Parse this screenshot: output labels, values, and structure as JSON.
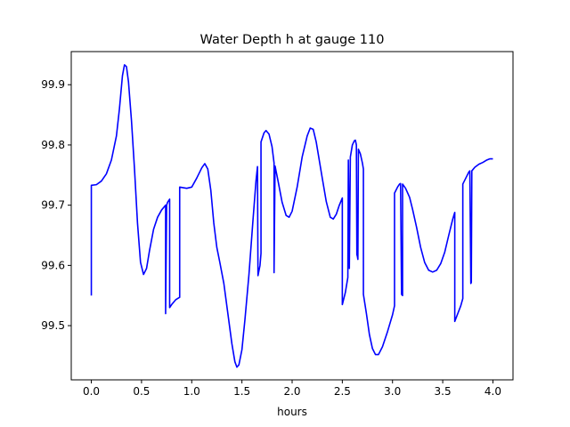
{
  "chart_data": {
    "type": "line",
    "title": "Water Depth h at gauge 110",
    "xlabel": "hours",
    "ylabel": "",
    "xlim": [
      -0.2,
      4.2
    ],
    "ylim": [
      99.41,
      99.955
    ],
    "xticks": [
      {
        "value": 0.0,
        "label": "0.0"
      },
      {
        "value": 0.5,
        "label": "0.5"
      },
      {
        "value": 1.0,
        "label": "1.0"
      },
      {
        "value": 1.5,
        "label": "1.5"
      },
      {
        "value": 2.0,
        "label": "2.0"
      },
      {
        "value": 2.5,
        "label": "2.5"
      },
      {
        "value": 3.0,
        "label": "3.0"
      },
      {
        "value": 3.5,
        "label": "3.5"
      },
      {
        "value": 4.0,
        "label": "4.0"
      }
    ],
    "yticks": [
      {
        "value": 99.5,
        "label": "99.5"
      },
      {
        "value": 99.6,
        "label": "99.6"
      },
      {
        "value": 99.7,
        "label": "99.7"
      },
      {
        "value": 99.8,
        "label": "99.8"
      },
      {
        "value": 99.9,
        "label": "99.9"
      }
    ],
    "grid": false,
    "series": [
      {
        "color": "#0000ff",
        "points": [
          [
            0.0,
            99.55
          ],
          [
            0.0,
            99.733
          ],
          [
            0.05,
            99.734
          ],
          [
            0.1,
            99.74
          ],
          [
            0.15,
            99.752
          ],
          [
            0.2,
            99.775
          ],
          [
            0.25,
            99.815
          ],
          [
            0.28,
            99.86
          ],
          [
            0.31,
            99.915
          ],
          [
            0.33,
            99.933
          ],
          [
            0.35,
            99.93
          ],
          [
            0.37,
            99.905
          ],
          [
            0.4,
            99.84
          ],
          [
            0.43,
            99.76
          ],
          [
            0.46,
            99.67
          ],
          [
            0.49,
            99.605
          ],
          [
            0.52,
            99.585
          ],
          [
            0.55,
            99.595
          ],
          [
            0.58,
            99.625
          ],
          [
            0.62,
            99.66
          ],
          [
            0.66,
            99.68
          ],
          [
            0.7,
            99.692
          ],
          [
            0.74,
            99.7
          ],
          [
            0.74,
            99.52
          ],
          [
            0.75,
            99.7
          ],
          [
            0.76,
            99.705
          ],
          [
            0.78,
            99.71
          ],
          [
            0.78,
            99.53
          ],
          [
            0.8,
            99.535
          ],
          [
            0.84,
            99.543
          ],
          [
            0.88,
            99.547
          ],
          [
            0.88,
            99.73
          ],
          [
            0.95,
            99.728
          ],
          [
            1.0,
            99.73
          ],
          [
            1.05,
            99.745
          ],
          [
            1.1,
            99.762
          ],
          [
            1.13,
            99.769
          ],
          [
            1.16,
            99.76
          ],
          [
            1.19,
            99.725
          ],
          [
            1.22,
            99.67
          ],
          [
            1.25,
            99.63
          ],
          [
            1.28,
            99.605
          ],
          [
            1.32,
            99.57
          ],
          [
            1.36,
            99.52
          ],
          [
            1.4,
            99.47
          ],
          [
            1.43,
            99.44
          ],
          [
            1.45,
            99.431
          ],
          [
            1.47,
            99.435
          ],
          [
            1.5,
            99.46
          ],
          [
            1.53,
            99.51
          ],
          [
            1.57,
            99.585
          ],
          [
            1.61,
            99.675
          ],
          [
            1.64,
            99.74
          ],
          [
            1.655,
            99.764
          ],
          [
            1.66,
            99.583
          ],
          [
            1.68,
            99.6
          ],
          [
            1.69,
            99.62
          ],
          [
            1.69,
            99.805
          ],
          [
            1.72,
            99.82
          ],
          [
            1.74,
            99.824
          ],
          [
            1.77,
            99.818
          ],
          [
            1.8,
            99.797
          ],
          [
            1.82,
            99.77
          ],
          [
            1.82,
            99.588
          ],
          [
            1.83,
            99.765
          ],
          [
            1.86,
            99.74
          ],
          [
            1.9,
            99.705
          ],
          [
            1.94,
            99.683
          ],
          [
            1.97,
            99.68
          ],
          [
            2.0,
            99.69
          ],
          [
            2.05,
            99.73
          ],
          [
            2.1,
            99.78
          ],
          [
            2.15,
            99.815
          ],
          [
            2.18,
            99.828
          ],
          [
            2.21,
            99.826
          ],
          [
            2.24,
            99.805
          ],
          [
            2.27,
            99.775
          ],
          [
            2.3,
            99.745
          ],
          [
            2.34,
            99.706
          ],
          [
            2.38,
            99.68
          ],
          [
            2.41,
            99.677
          ],
          [
            2.44,
            99.685
          ],
          [
            2.47,
            99.7
          ],
          [
            2.5,
            99.712
          ],
          [
            2.5,
            99.535
          ],
          [
            2.53,
            99.555
          ],
          [
            2.555,
            99.58
          ],
          [
            2.56,
            99.775
          ],
          [
            2.57,
            99.595
          ],
          [
            2.58,
            99.78
          ],
          [
            2.6,
            99.8
          ],
          [
            2.62,
            99.807
          ],
          [
            2.63,
            99.808
          ],
          [
            2.64,
            99.8
          ],
          [
            2.645,
            99.618
          ],
          [
            2.65,
            99.615
          ],
          [
            2.655,
            99.61
          ],
          [
            2.66,
            99.793
          ],
          [
            2.68,
            99.785
          ],
          [
            2.7,
            99.77
          ],
          [
            2.71,
            99.76
          ],
          [
            2.71,
            99.552
          ],
          [
            2.74,
            99.52
          ],
          [
            2.77,
            99.485
          ],
          [
            2.8,
            99.462
          ],
          [
            2.83,
            99.452
          ],
          [
            2.86,
            99.452
          ],
          [
            2.9,
            99.465
          ],
          [
            2.95,
            99.49
          ],
          [
            3.0,
            99.518
          ],
          [
            3.02,
            99.533
          ],
          [
            3.02,
            99.72
          ],
          [
            3.05,
            99.73
          ],
          [
            3.07,
            99.735
          ],
          [
            3.08,
            99.736
          ],
          [
            3.09,
            99.552
          ],
          [
            3.1,
            99.55
          ],
          [
            3.1,
            99.735
          ],
          [
            3.13,
            99.728
          ],
          [
            3.17,
            99.713
          ],
          [
            3.2,
            99.693
          ],
          [
            3.24,
            99.663
          ],
          [
            3.28,
            99.63
          ],
          [
            3.32,
            99.605
          ],
          [
            3.36,
            99.592
          ],
          [
            3.4,
            99.589
          ],
          [
            3.44,
            99.592
          ],
          [
            3.48,
            99.603
          ],
          [
            3.52,
            99.622
          ],
          [
            3.56,
            99.65
          ],
          [
            3.6,
            99.677
          ],
          [
            3.62,
            99.688
          ],
          [
            3.62,
            99.507
          ],
          [
            3.65,
            99.52
          ],
          [
            3.68,
            99.533
          ],
          [
            3.7,
            99.545
          ],
          [
            3.7,
            99.735
          ],
          [
            3.73,
            99.745
          ],
          [
            3.76,
            99.755
          ],
          [
            3.77,
            99.757
          ],
          [
            3.78,
            99.57
          ],
          [
            3.785,
            99.572
          ],
          [
            3.79,
            99.757
          ],
          [
            3.82,
            99.763
          ],
          [
            3.86,
            99.768
          ],
          [
            3.9,
            99.771
          ],
          [
            3.94,
            99.775
          ],
          [
            3.97,
            99.777
          ],
          [
            4.0,
            99.777
          ]
        ]
      }
    ]
  }
}
